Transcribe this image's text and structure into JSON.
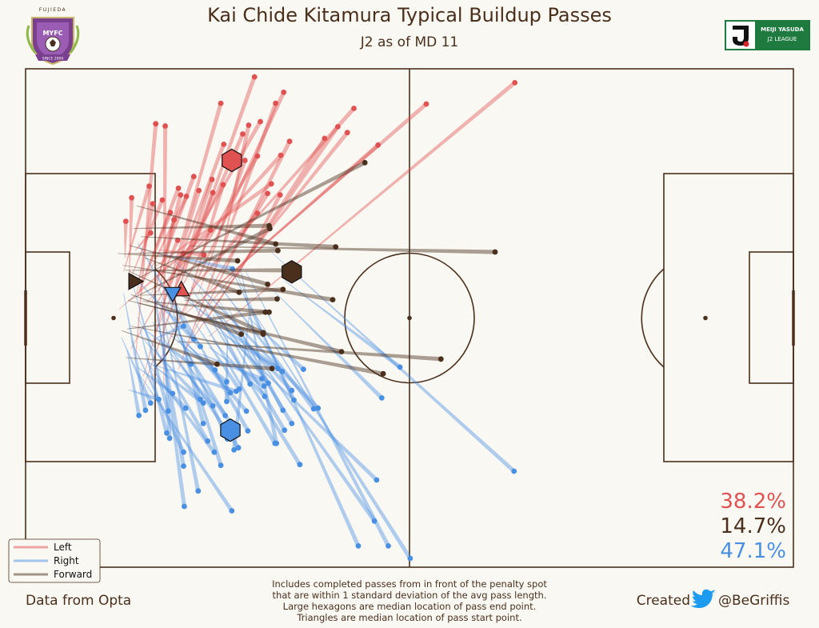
{
  "header": {
    "title": "Kai Chide Kitamura Typical Buildup Passes",
    "subtitle": "J2 as of MD 11",
    "club_logo_top_text": "FUJIEDA",
    "club_logo_text": "MYFC",
    "club_logo_ribbon": "SINCE 2009",
    "league_logo_line1": "MEIJI YASUDA",
    "league_logo_line2": "J2 LEAGUE"
  },
  "footer": {
    "source": "Data from Opta",
    "notes": [
      "Includes completed passes from in front of the penalty spot",
      "that are within 1 standard deviation of the avg pass length.",
      "Large hexagons are median location of pass end point.",
      "Triangles are median location of pass start point."
    ],
    "credit_prefix": "Created",
    "credit_handle": "@BeGriffis"
  },
  "colors": {
    "background": "#faf8f3",
    "pitch_line": "#4a2f1c",
    "left": "#e05252",
    "right": "#4a90e2",
    "forward": "#4a2f1c",
    "twitter": "#1d9bf0",
    "league_green": "#1e7a3e"
  },
  "chart_data": {
    "type": "scatter",
    "title": "Kai Chide Kitamura Typical Buildup Passes",
    "subtitle": "J2 as of MD 11",
    "pitch": {
      "length": 105,
      "width": 68
    },
    "legend": {
      "placement": "bottom-left",
      "entries": [
        "Left",
        "Right",
        "Forward"
      ]
    },
    "percentages": {
      "left": "38.2%",
      "forward": "14.7%",
      "right": "47.1%"
    },
    "series": [
      {
        "name": "Left",
        "passes": [
          [
            15.8,
            23.7,
            31.3,
            66.9
          ],
          [
            17.0,
            25.2,
            35.3,
            64.8
          ],
          [
            16.1,
            26.0,
            26.7,
            63.3
          ],
          [
            15.0,
            28.1,
            17.8,
            60.5
          ],
          [
            18.9,
            24.5,
            19.1,
            60.2
          ],
          [
            14.4,
            29.8,
            32.1,
            60.8
          ],
          [
            20.9,
            27.0,
            34.2,
            63.3
          ],
          [
            17.6,
            31.6,
            29.7,
            59.1
          ],
          [
            17.8,
            33.3,
            27.1,
            57.7
          ],
          [
            22.6,
            31.3,
            36.1,
            58.1
          ],
          [
            24.4,
            33.2,
            40.9,
            58.5
          ],
          [
            16.5,
            36.0,
            34.9,
            56.2
          ],
          [
            21.7,
            29.5,
            42.7,
            60.1
          ],
          [
            23.5,
            33.8,
            44.0,
            59.3
          ],
          [
            19.9,
            35.8,
            31.7,
            56.1
          ],
          [
            17.2,
            37.3,
            23.0,
            53.3
          ],
          [
            15.5,
            37.7,
            20.9,
            51.7
          ],
          [
            20.2,
            37.0,
            25.5,
            52.9
          ],
          [
            13.4,
            40.3,
            16.9,
            52.0
          ],
          [
            15.2,
            37.3,
            17.4,
            49.6
          ],
          [
            14.5,
            39.7,
            18.7,
            50.1
          ],
          [
            17.3,
            36.2,
            21.2,
            50.8
          ],
          [
            19.8,
            38.0,
            23.7,
            51.4
          ],
          [
            21.8,
            34.8,
            27.0,
            52.2
          ],
          [
            13.6,
            42.2,
            13.7,
            47.2
          ],
          [
            14.2,
            40.0,
            14.5,
            50.4
          ],
          [
            15.3,
            36.9,
            19.8,
            48.4
          ],
          [
            16.6,
            39.6,
            22.0,
            50.6
          ],
          [
            18.2,
            37.5,
            20.3,
            47.4
          ],
          [
            21.3,
            40.2,
            25.6,
            51.1
          ],
          [
            23.4,
            38.8,
            31.7,
            48.3
          ],
          [
            25.1,
            37.7,
            33.1,
            51.0
          ],
          [
            28.9,
            39.5,
            34.8,
            50.8
          ],
          [
            23.6,
            37.2,
            30.0,
            55.5
          ],
          [
            15.0,
            43.2,
            17.1,
            45.6
          ],
          [
            18.8,
            40.0,
            20.8,
            44.6
          ],
          [
            20.2,
            37.3,
            21.6,
            42.8
          ],
          [
            18.2,
            43.3,
            24.4,
            42.6
          ],
          [
            17.7,
            41.0,
            33.6,
            52.3
          ],
          [
            21.2,
            34.0,
            48.2,
            57.6
          ],
          [
            25.1,
            31.5,
            66.9,
            66.1
          ],
          [
            23.4,
            36.0,
            54.8,
            63.2
          ],
          [
            22.6,
            37.7,
            44.9,
            62.6
          ],
          [
            12.8,
            35.2,
            25.3,
            46.0
          ],
          [
            26.5,
            41.4,
            30.5,
            60.3
          ]
        ]
      },
      {
        "name": "Right",
        "passes": [
          [
            14.8,
            39.6,
            23.9,
            30.1
          ],
          [
            15.3,
            34.1,
            24.9,
            17.2
          ],
          [
            17.5,
            37.3,
            21.6,
            13.8
          ],
          [
            13.1,
            31.4,
            17.1,
            22.4
          ],
          [
            13.9,
            29.6,
            15.5,
            20.7
          ],
          [
            15.5,
            33.0,
            19.3,
            18.3
          ],
          [
            14.4,
            31.0,
            21.6,
            15.7
          ],
          [
            18.7,
            35.0,
            23.6,
            10.4
          ],
          [
            15.5,
            26.4,
            28.2,
            7.7
          ],
          [
            19.2,
            34.0,
            28.9,
            18.2
          ],
          [
            16.4,
            28.3,
            24.3,
            22.4
          ],
          [
            15.3,
            27.3,
            20.1,
            23.7
          ],
          [
            17.5,
            26.1,
            21.9,
            21.7
          ],
          [
            19.5,
            29.6,
            25.6,
            22.0
          ],
          [
            14.1,
            24.2,
            18.2,
            22.9
          ],
          [
            16.0,
            31.2,
            23.9,
            22.9
          ],
          [
            17.5,
            27.6,
            28.8,
            24.0
          ],
          [
            20.5,
            34.3,
            24.3,
            19.6
          ],
          [
            22.2,
            37.2,
            34.1,
            16.9
          ],
          [
            22.6,
            38.3,
            37.5,
            14.0
          ],
          [
            20.8,
            32.0,
            30.2,
            21.3
          ],
          [
            21.5,
            28.5,
            27.3,
            20.7
          ],
          [
            24.3,
            29.0,
            28.0,
            23.8
          ],
          [
            16.6,
            28.0,
            25.8,
            15.7
          ],
          [
            17.3,
            33.5,
            29.1,
            16.3
          ],
          [
            18.1,
            38.2,
            27.6,
            17.5
          ],
          [
            14.7,
            38.5,
            19.5,
            21.3
          ],
          [
            15.9,
            32.7,
            22.6,
            27.7
          ],
          [
            19.4,
            32.0,
            27.5,
            25.3
          ],
          [
            20.4,
            36.4,
            30.4,
            18.6
          ],
          [
            25.6,
            30.9,
            32.7,
            23.3
          ],
          [
            25.1,
            30.0,
            32.6,
            24.7
          ],
          [
            26.5,
            34.1,
            35.4,
            18.7
          ],
          [
            24.5,
            36.5,
            36.4,
            24.1
          ],
          [
            20.4,
            41.8,
            40.0,
            21.7
          ],
          [
            23.8,
            35.2,
            48.0,
            11.9
          ],
          [
            26.3,
            36.5,
            47.7,
            6.3
          ],
          [
            30.1,
            40.4,
            49.6,
            2.9
          ],
          [
            29.1,
            39.5,
            45.5,
            2.9
          ],
          [
            30.1,
            36.5,
            52.6,
            1.2
          ],
          [
            13.4,
            37.4,
            16.4,
            21.4
          ],
          [
            15.3,
            44.3,
            23.0,
            31.1
          ],
          [
            17.7,
            37.5,
            21.7,
            8.3
          ],
          [
            18.6,
            36.6,
            19.7,
            17.6
          ],
          [
            19.2,
            38.0,
            26.7,
            13.9
          ],
          [
            18.3,
            42.8,
            28.3,
            40.7
          ],
          [
            21.7,
            36.7,
            34.5,
            27.1
          ],
          [
            26.5,
            32.1,
            35.1,
            26.7
          ],
          [
            30.6,
            34.6,
            28.5,
            16.0
          ],
          [
            35.4,
            39.1,
            51.2,
            27.3
          ],
          [
            34.0,
            37.6,
            48.7,
            23.1
          ],
          [
            27.9,
            41.2,
            36.7,
            22.8
          ],
          [
            29.4,
            40.8,
            34.3,
            16.9
          ],
          [
            33.7,
            42.9,
            66.8,
            13.1
          ],
          [
            17.5,
            31.1,
            21.6,
            32.9
          ],
          [
            23.1,
            33.4,
            29.2,
            24.3
          ],
          [
            25.6,
            34.5,
            30.7,
            25.0
          ],
          [
            30.4,
            34.1,
            38.0,
            27.0
          ],
          [
            23.7,
            29.2,
            32.3,
            25.7
          ],
          [
            28.6,
            32.4,
            36.4,
            19.6
          ],
          [
            21.6,
            30.8,
            25.9,
            26.9
          ],
          [
            27.6,
            31.5,
            27.5,
            22.6
          ],
          [
            23.8,
            37.6,
            33.2,
            25.1
          ],
          [
            27.7,
            35.4,
            35.2,
            21.4
          ],
          [
            25.2,
            40.1,
            39.4,
            21.6
          ]
        ]
      },
      {
        "name": "Forward",
        "passes": [
          [
            14.8,
            39.1,
            46.4,
            55.2
          ],
          [
            13.6,
            40.5,
            35.6,
            40.5
          ],
          [
            14.0,
            36.4,
            32.5,
            31.8
          ],
          [
            20.8,
            30.8,
            56.8,
            28.4
          ],
          [
            16.0,
            36.3,
            33.3,
            34.8
          ],
          [
            14.4,
            32.9,
            48.9,
            26.4
          ],
          [
            15.7,
            37.1,
            35.2,
            37.9
          ],
          [
            13.9,
            42.8,
            34.5,
            43.2
          ],
          [
            12.6,
            42.8,
            29.0,
            41.8
          ],
          [
            15.5,
            36.0,
            43.2,
            29.4
          ],
          [
            21.7,
            36.4,
            34.4,
            36.6
          ],
          [
            16.3,
            42.2,
            29.2,
            37.5
          ],
          [
            13.3,
            41.2,
            42.0,
            36.5
          ],
          [
            14.7,
            46.2,
            33.3,
            46.6
          ],
          [
            15.2,
            49.3,
            34.2,
            44.1
          ],
          [
            14.2,
            43.9,
            33.1,
            38.6
          ],
          [
            15.8,
            45.1,
            42.4,
            43.7
          ],
          [
            13.9,
            32.5,
            32.8,
            34.8
          ],
          [
            14.1,
            36.4,
            33.4,
            46.2
          ],
          [
            22.6,
            43.8,
            64.2,
            43.0
          ],
          [
            14.4,
            37.2,
            29.5,
            31.8
          ],
          [
            14.1,
            40.4,
            32.5,
            32.0
          ],
          [
            13.7,
            28.6,
            33.7,
            27.1
          ],
          [
            13.1,
            32.3,
            26.2,
            27.7
          ]
        ]
      }
    ],
    "medians": {
      "left": {
        "end": [
          28.2,
          55.5
        ],
        "start": [
          21.3,
          37.9
        ]
      },
      "right": {
        "end": [
          28.0,
          18.7
        ],
        "start": [
          20.1,
          37.3
        ]
      },
      "forward": {
        "end": [
          36.4,
          40.3
        ],
        "start": [
          15.0,
          39.0
        ]
      }
    }
  }
}
